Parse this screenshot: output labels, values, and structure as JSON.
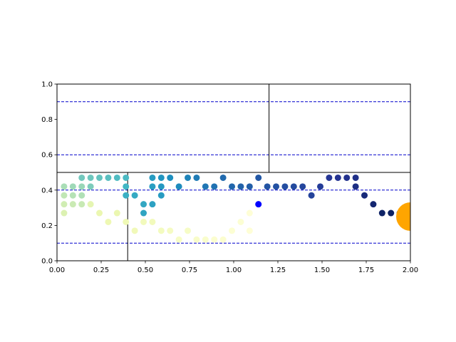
{
  "chart_data": {
    "type": "scatter",
    "title": "",
    "xlabel": "",
    "ylabel": "",
    "xlim": [
      0,
      2
    ],
    "ylim": [
      0,
      1
    ],
    "x_ticks": [
      {
        "value": 0,
        "label": "0.00"
      },
      {
        "value": 0.25,
        "label": "0.25"
      },
      {
        "value": 0.5,
        "label": "0.50"
      },
      {
        "value": 0.75,
        "label": "0.75"
      },
      {
        "value": 1.0,
        "label": "1.00"
      },
      {
        "value": 1.25,
        "label": "1.25"
      },
      {
        "value": 1.5,
        "label": "1.50"
      },
      {
        "value": 1.75,
        "label": "1.75"
      },
      {
        "value": 2.0,
        "label": "2.00"
      }
    ],
    "y_ticks": [
      {
        "value": 0,
        "label": "0.0"
      },
      {
        "value": 0.2,
        "label": "0.2"
      },
      {
        "value": 0.4,
        "label": "0.4"
      },
      {
        "value": 0.6,
        "label": "0.6"
      },
      {
        "value": 0.8,
        "label": "0.8"
      },
      {
        "value": 1.0,
        "label": "1.0"
      }
    ],
    "grid": false,
    "colormap": "YlGnBu",
    "reference_lines": {
      "horizontal_dashed": {
        "color": "#0000cc",
        "y": [
          0.1,
          0.4,
          0.6,
          0.9
        ]
      },
      "horizontal_solid": {
        "color": "#000000",
        "y": [
          0.5
        ]
      },
      "vertical_solid": [
        {
          "x": 0.4,
          "y_range": [
            0,
            0.5
          ]
        },
        {
          "x": 1.2,
          "y_range": [
            0.5,
            1.0
          ]
        }
      ]
    },
    "points": [
      {
        "x": 0.04,
        "y": 0.42,
        "c": 0.3
      },
      {
        "x": 0.04,
        "y": 0.37,
        "c": 0.26
      },
      {
        "x": 0.04,
        "y": 0.32,
        "c": 0.22
      },
      {
        "x": 0.04,
        "y": 0.27,
        "c": 0.18
      },
      {
        "x": 0.09,
        "y": 0.42,
        "c": 0.32
      },
      {
        "x": 0.09,
        "y": 0.37,
        "c": 0.28
      },
      {
        "x": 0.09,
        "y": 0.32,
        "c": 0.24
      },
      {
        "x": 0.14,
        "y": 0.47,
        "c": 0.4
      },
      {
        "x": 0.14,
        "y": 0.42,
        "c": 0.33
      },
      {
        "x": 0.14,
        "y": 0.37,
        "c": 0.29
      },
      {
        "x": 0.14,
        "y": 0.32,
        "c": 0.25
      },
      {
        "x": 0.19,
        "y": 0.47,
        "c": 0.41
      },
      {
        "x": 0.19,
        "y": 0.42,
        "c": 0.38
      },
      {
        "x": 0.19,
        "y": 0.32,
        "c": 0.15
      },
      {
        "x": 0.24,
        "y": 0.47,
        "c": 0.43
      },
      {
        "x": 0.24,
        "y": 0.27,
        "c": 0.13
      },
      {
        "x": 0.29,
        "y": 0.47,
        "c": 0.45
      },
      {
        "x": 0.29,
        "y": 0.22,
        "c": 0.12
      },
      {
        "x": 0.34,
        "y": 0.47,
        "c": 0.47
      },
      {
        "x": 0.34,
        "y": 0.27,
        "c": 0.13
      },
      {
        "x": 0.39,
        "y": 0.47,
        "c": 0.48
      },
      {
        "x": 0.39,
        "y": 0.42,
        "c": 0.5
      },
      {
        "x": 0.39,
        "y": 0.37,
        "c": 0.52
      },
      {
        "x": 0.39,
        "y": 0.22,
        "c": 0.11
      },
      {
        "x": 0.44,
        "y": 0.37,
        "c": 0.54
      },
      {
        "x": 0.44,
        "y": 0.17,
        "c": 0.1
      },
      {
        "x": 0.49,
        "y": 0.32,
        "c": 0.55
      },
      {
        "x": 0.49,
        "y": 0.27,
        "c": 0.56
      },
      {
        "x": 0.49,
        "y": 0.22,
        "c": 0.09
      },
      {
        "x": 0.54,
        "y": 0.47,
        "c": 0.59
      },
      {
        "x": 0.54,
        "y": 0.42,
        "c": 0.58
      },
      {
        "x": 0.54,
        "y": 0.32,
        "c": 0.57
      },
      {
        "x": 0.54,
        "y": 0.22,
        "c": 0.09
      },
      {
        "x": 0.59,
        "y": 0.47,
        "c": 0.61
      },
      {
        "x": 0.59,
        "y": 0.42,
        "c": 0.6
      },
      {
        "x": 0.59,
        "y": 0.37,
        "c": 0.59
      },
      {
        "x": 0.59,
        "y": 0.17,
        "c": 0.08
      },
      {
        "x": 0.64,
        "y": 0.47,
        "c": 0.63
      },
      {
        "x": 0.64,
        "y": 0.17,
        "c": 0.07
      },
      {
        "x": 0.69,
        "y": 0.42,
        "c": 0.64
      },
      {
        "x": 0.69,
        "y": 0.12,
        "c": 0.06
      },
      {
        "x": 0.74,
        "y": 0.47,
        "c": 0.66
      },
      {
        "x": 0.74,
        "y": 0.17,
        "c": 0.06
      },
      {
        "x": 0.79,
        "y": 0.47,
        "c": 0.68
      },
      {
        "x": 0.79,
        "y": 0.12,
        "c": 0.05
      },
      {
        "x": 0.84,
        "y": 0.42,
        "c": 0.69
      },
      {
        "x": 0.84,
        "y": 0.12,
        "c": 0.04
      },
      {
        "x": 0.89,
        "y": 0.42,
        "c": 0.7
      },
      {
        "x": 0.89,
        "y": 0.12,
        "c": 0.03
      },
      {
        "x": 0.94,
        "y": 0.47,
        "c": 0.72
      },
      {
        "x": 0.94,
        "y": 0.12,
        "c": 0.03
      },
      {
        "x": 0.99,
        "y": 0.42,
        "c": 0.73
      },
      {
        "x": 0.99,
        "y": 0.17,
        "c": 0.02
      },
      {
        "x": 1.04,
        "y": 0.42,
        "c": 0.74
      },
      {
        "x": 1.04,
        "y": 0.22,
        "c": 0.02
      },
      {
        "x": 1.09,
        "y": 0.42,
        "c": 0.75
      },
      {
        "x": 1.09,
        "y": 0.27,
        "c": 0.01
      },
      {
        "x": 1.09,
        "y": 0.17,
        "c": 0.01
      },
      {
        "x": 1.14,
        "y": 0.47,
        "c": 0.77
      },
      {
        "x": 1.19,
        "y": 0.42,
        "c": 0.78
      },
      {
        "x": 1.24,
        "y": 0.42,
        "c": 0.79
      },
      {
        "x": 1.29,
        "y": 0.42,
        "c": 0.8
      },
      {
        "x": 1.34,
        "y": 0.42,
        "c": 0.81
      },
      {
        "x": 1.39,
        "y": 0.42,
        "c": 0.82
      },
      {
        "x": 1.44,
        "y": 0.37,
        "c": 0.83
      },
      {
        "x": 1.49,
        "y": 0.42,
        "c": 0.85
      },
      {
        "x": 1.54,
        "y": 0.47,
        "c": 0.87
      },
      {
        "x": 1.59,
        "y": 0.47,
        "c": 0.88
      },
      {
        "x": 1.64,
        "y": 0.47,
        "c": 0.89
      },
      {
        "x": 1.69,
        "y": 0.47,
        "c": 0.9
      },
      {
        "x": 1.69,
        "y": 0.42,
        "c": 0.91
      },
      {
        "x": 1.74,
        "y": 0.37,
        "c": 0.93
      },
      {
        "x": 1.79,
        "y": 0.32,
        "c": 0.95
      },
      {
        "x": 1.84,
        "y": 0.27,
        "c": 0.97
      },
      {
        "x": 1.89,
        "y": 0.27,
        "c": 0.98
      },
      {
        "x": 1.94,
        "y": 0.27,
        "c": 1.0
      }
    ],
    "highlight_points": [
      {
        "x": 1.14,
        "y": 0.32,
        "color": "#0000ff",
        "size": "normal"
      },
      {
        "x": 2.0,
        "y": 0.25,
        "color": "#ffa500",
        "size": "large"
      }
    ]
  }
}
